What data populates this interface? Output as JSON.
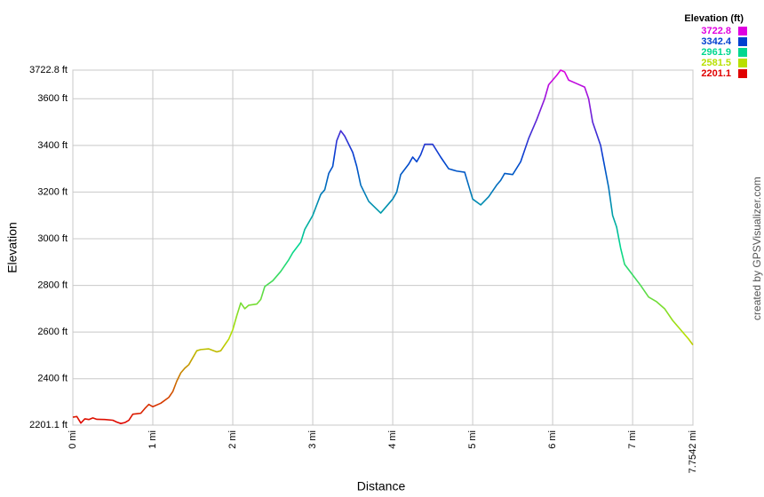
{
  "chart_data": {
    "type": "line",
    "x_label": "Distance",
    "y_label": "Elevation",
    "credit": "created by GPSVisualizer.com",
    "legend_title": "Elevation (ft)",
    "color_scale": [
      {
        "value": 3722.8,
        "color": "#e000e0"
      },
      {
        "value": 3342.4,
        "color": "#0040d0"
      },
      {
        "value": 2961.9,
        "color": "#00d890"
      },
      {
        "value": 2581.5,
        "color": "#b8e000"
      },
      {
        "value": 2201.1,
        "color": "#e00000"
      }
    ],
    "grid": true,
    "xlim": [
      0,
      7.7542
    ],
    "ylim": [
      2201.1,
      3722.8
    ],
    "xticks": [
      {
        "value": 0,
        "label": "0 mi"
      },
      {
        "value": 1,
        "label": "1 mi"
      },
      {
        "value": 2,
        "label": "2 mi"
      },
      {
        "value": 3,
        "label": "3 mi"
      },
      {
        "value": 4,
        "label": "4 mi"
      },
      {
        "value": 5,
        "label": "5 mi"
      },
      {
        "value": 6,
        "label": "6 mi"
      },
      {
        "value": 7,
        "label": "7 mi"
      },
      {
        "value": 7.7542,
        "label": "7.7542 mi"
      }
    ],
    "yticks": [
      {
        "value": 2201.1,
        "label": "2201.1 ft"
      },
      {
        "value": 2400,
        "label": "2400 ft"
      },
      {
        "value": 2600,
        "label": "2600 ft"
      },
      {
        "value": 2800,
        "label": "2800 ft"
      },
      {
        "value": 3000,
        "label": "3000 ft"
      },
      {
        "value": 3200,
        "label": "3200 ft"
      },
      {
        "value": 3400,
        "label": "3400 ft"
      },
      {
        "value": 3600,
        "label": "3600 ft"
      },
      {
        "value": 3722.8,
        "label": "3722.8 ft"
      }
    ],
    "x": [
      0,
      0.05,
      0.1,
      0.15,
      0.2,
      0.25,
      0.3,
      0.4,
      0.5,
      0.55,
      0.6,
      0.65,
      0.7,
      0.75,
      0.8,
      0.85,
      0.9,
      0.95,
      1.0,
      1.1,
      1.2,
      1.25,
      1.3,
      1.35,
      1.4,
      1.45,
      1.5,
      1.55,
      1.6,
      1.7,
      1.8,
      1.85,
      1.9,
      1.95,
      2.0,
      2.05,
      2.1,
      2.15,
      2.2,
      2.3,
      2.35,
      2.4,
      2.5,
      2.6,
      2.7,
      2.75,
      2.85,
      2.9,
      3.0,
      3.05,
      3.1,
      3.15,
      3.2,
      3.25,
      3.3,
      3.35,
      3.4,
      3.5,
      3.55,
      3.6,
      3.7,
      3.85,
      4.0,
      4.05,
      4.1,
      4.2,
      4.25,
      4.3,
      4.35,
      4.4,
      4.5,
      4.6,
      4.7,
      4.8,
      4.9,
      5.0,
      5.1,
      5.2,
      5.3,
      5.35,
      5.4,
      5.5,
      5.6,
      5.7,
      5.8,
      5.9,
      5.95,
      6.0,
      6.05,
      6.1,
      6.15,
      6.2,
      6.3,
      6.4,
      6.45,
      6.5,
      6.6,
      6.7,
      6.75,
      6.8,
      6.85,
      6.9,
      7.0,
      7.1,
      7.2,
      7.3,
      7.4,
      7.5,
      7.6,
      7.7,
      7.7542
    ],
    "values": [
      2235,
      2238,
      2210,
      2228,
      2225,
      2232,
      2226,
      2225,
      2222,
      2214,
      2208,
      2212,
      2222,
      2248,
      2250,
      2252,
      2272,
      2290,
      2280,
      2295,
      2320,
      2345,
      2390,
      2425,
      2445,
      2460,
      2490,
      2520,
      2525,
      2528,
      2515,
      2520,
      2545,
      2570,
      2610,
      2670,
      2725,
      2700,
      2715,
      2720,
      2740,
      2795,
      2820,
      2860,
      2910,
      2940,
      2985,
      3040,
      3100,
      3145,
      3190,
      3210,
      3280,
      3310,
      3420,
      3463,
      3440,
      3370,
      3310,
      3230,
      3160,
      3110,
      3170,
      3200,
      3275,
      3320,
      3350,
      3330,
      3360,
      3405,
      3405,
      3350,
      3300,
      3290,
      3285,
      3170,
      3145,
      3180,
      3230,
      3250,
      3280,
      3275,
      3330,
      3430,
      3510,
      3600,
      3660,
      3680,
      3700,
      3722.8,
      3715,
      3680,
      3665,
      3650,
      3600,
      3500,
      3400,
      3220,
      3100,
      3050,
      2960,
      2890,
      2845,
      2800,
      2750,
      2730,
      2700,
      2650,
      2610,
      2570,
      2545
    ]
  }
}
